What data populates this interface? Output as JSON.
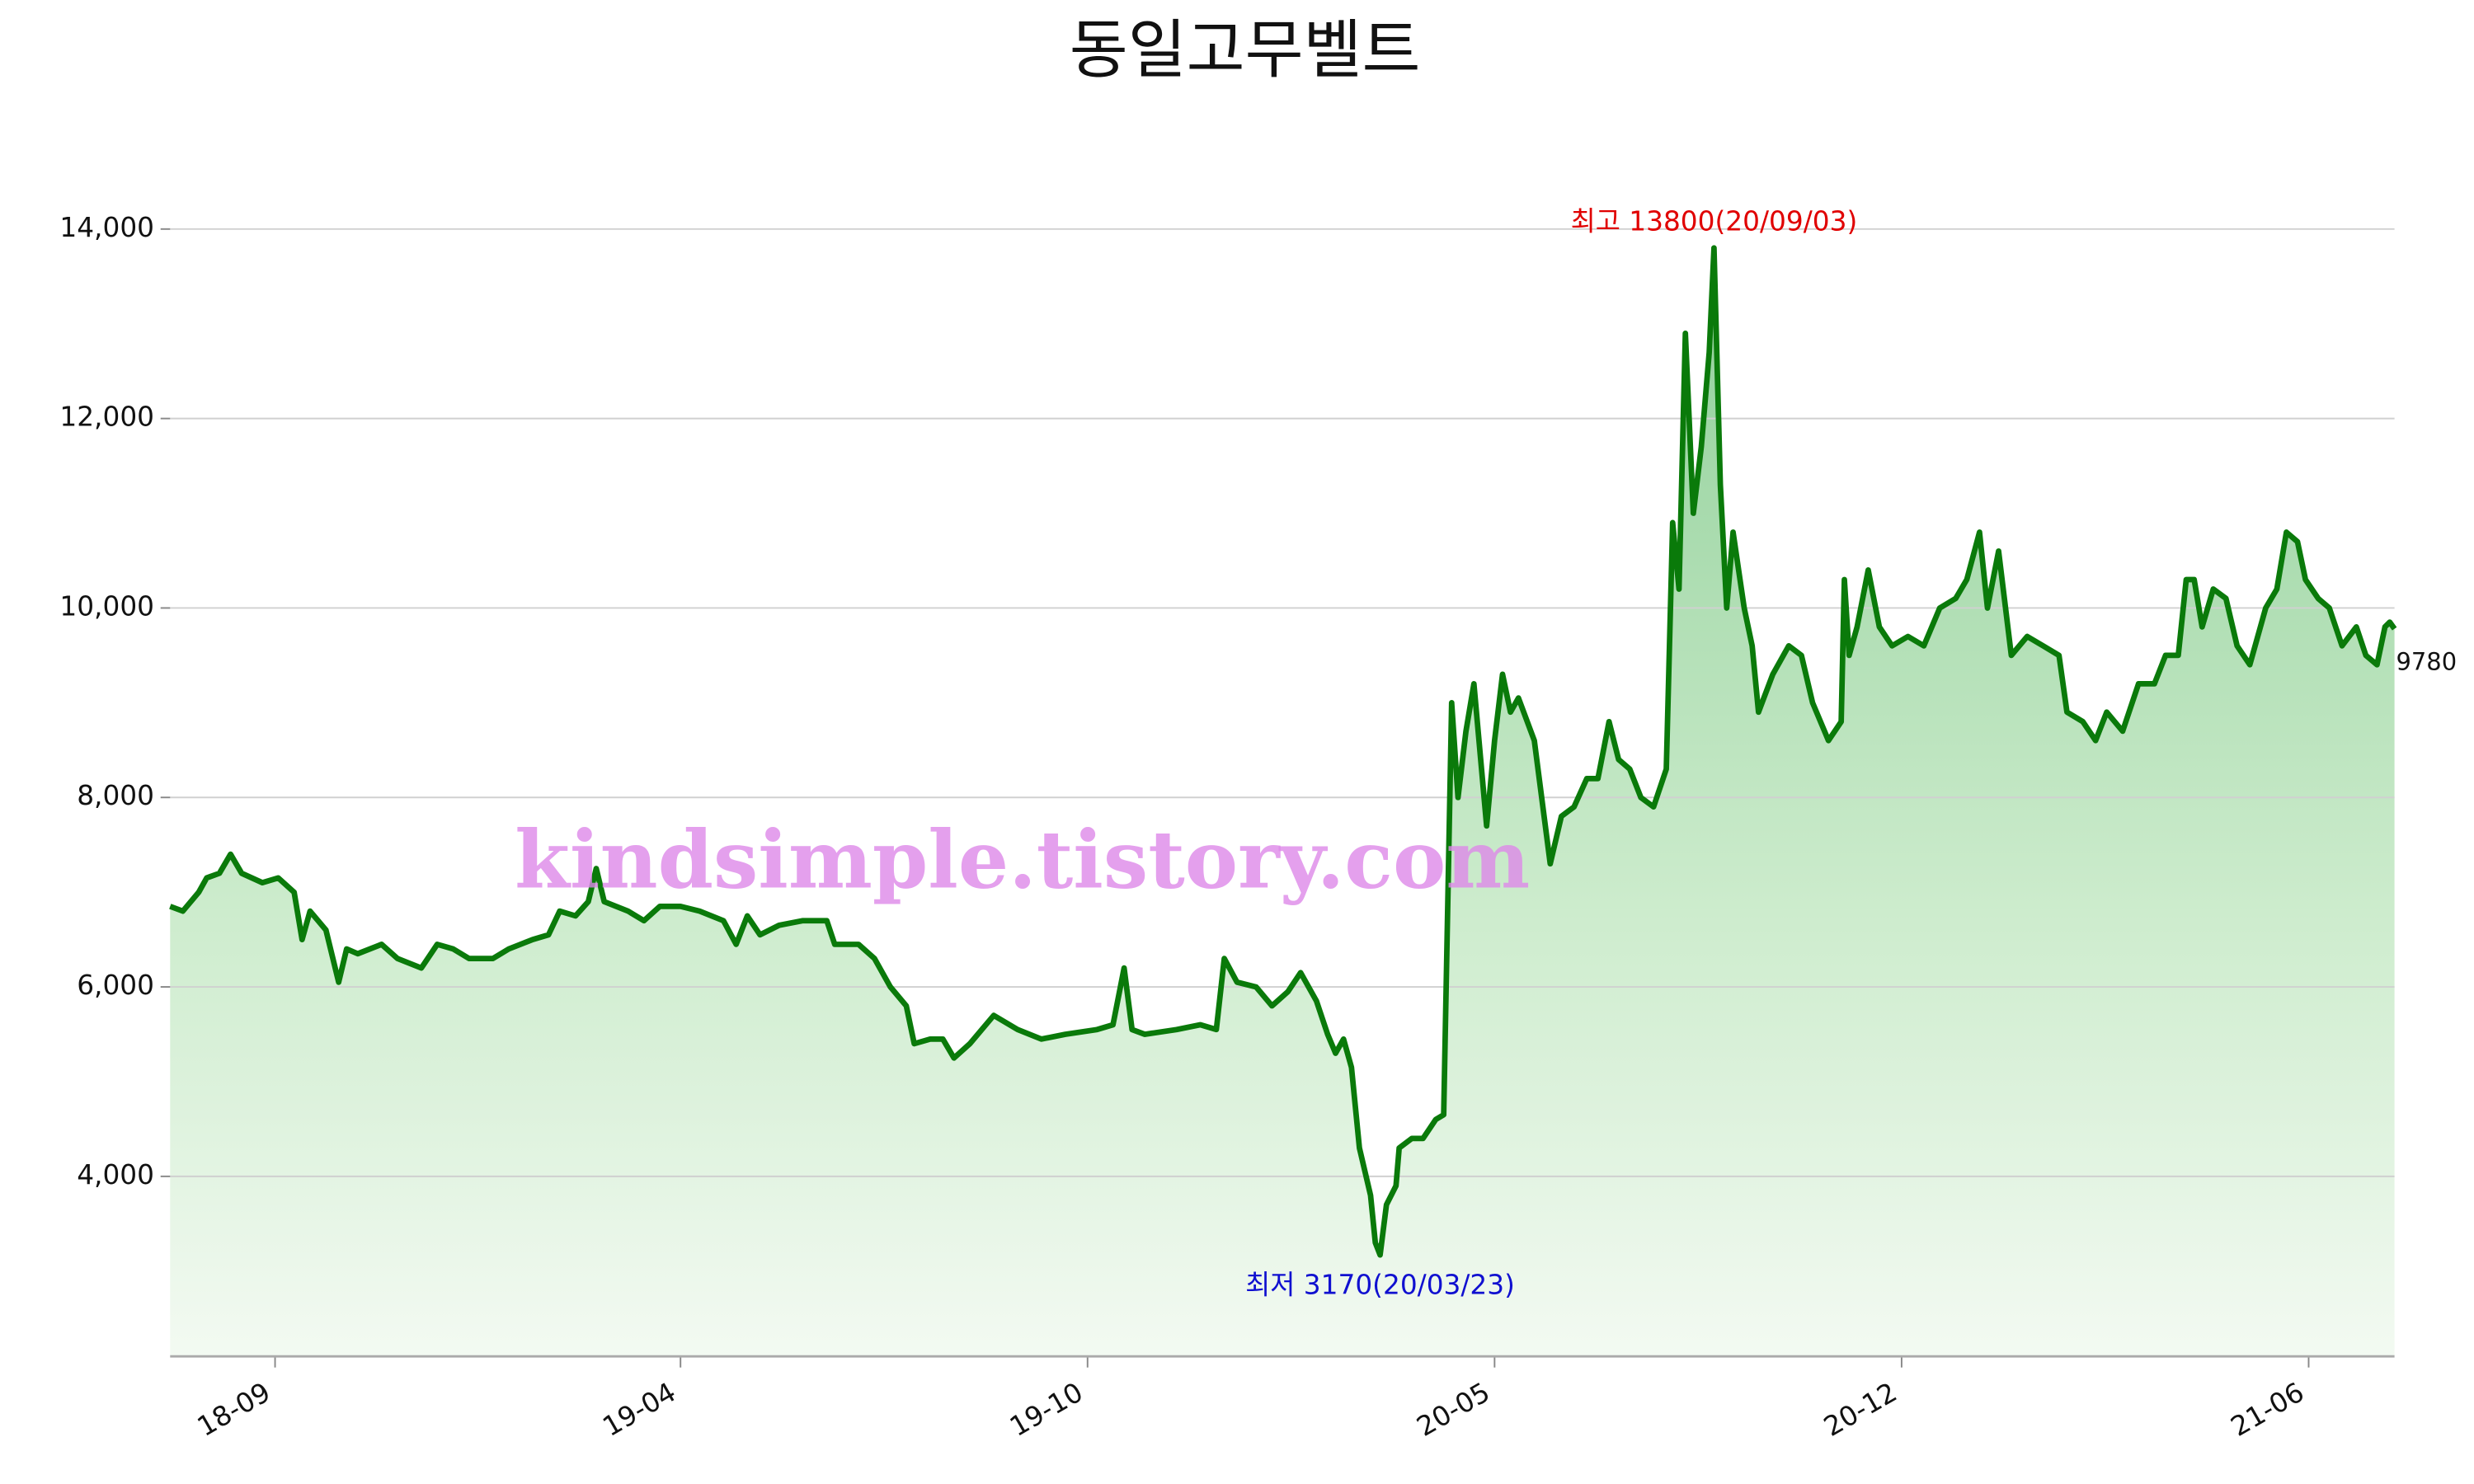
{
  "chart_data": {
    "type": "line",
    "title": "동일고무벨트",
    "watermark": "kindsimple.tistory.com",
    "annotations": {
      "high": "최고 13800(20/09/03)",
      "low": "최저 3170(20/03/23)",
      "last": "9780"
    },
    "x": [
      0,
      8,
      18,
      23,
      31,
      38,
      45,
      58,
      68,
      78,
      83,
      88,
      98,
      106,
      111,
      118,
      133,
      143,
      158,
      168,
      178,
      188,
      203,
      213,
      228,
      238,
      245,
      255,
      263,
      268,
      273,
      288,
      298,
      308,
      321,
      333,
      348,
      356,
      363,
      371,
      383,
      398,
      413,
      418,
      433,
      443,
      453,
      463,
      468,
      478,
      486,
      493,
      503,
      518,
      533,
      548,
      563,
      583,
      593,
      600,
      605,
      613,
      633,
      648,
      658,
      663,
      671,
      683,
      693,
      703,
      711,
      721,
      728,
      733,
      738,
      743,
      748,
      755,
      758,
      761,
      765,
      771,
      773,
      781,
      788,
      796,
      801,
      806,
      810,
      815,
      820,
      828,
      833,
      838,
      843,
      848,
      858,
      868,
      875,
      883,
      891,
      898,
      905,
      911,
      918,
      925,
      933,
      941,
      945,
      949,
      953,
      958,
      963,
      968,
      971,
      975,
      979,
      983,
      990,
      995,
      999,
      1008,
      1018,
      1026,
      1033,
      1043,
      1051,
      1053,
      1056,
      1061,
      1068,
      1075,
      1083,
      1093,
      1103,
      1113,
      1123,
      1130,
      1138,
      1143,
      1150,
      1158,
      1168,
      1178,
      1188,
      1193,
      1203,
      1211,
      1218,
      1228,
      1238,
      1248,
      1255,
      1263,
      1268,
      1273,
      1278,
      1285,
      1293,
      1300,
      1308,
      1318,
      1325,
      1331,
      1338,
      1343,
      1351,
      1358,
      1366,
      1375,
      1381,
      1388,
      1393,
      1396,
      1399
    ],
    "series": [
      {
        "name": "동일고무벨트",
        "color": "#0a7a0a",
        "values": [
          6850,
          6800,
          7000,
          7150,
          7200,
          7400,
          7200,
          7100,
          7150,
          7000,
          6500,
          6800,
          6600,
          6050,
          6400,
          6350,
          6450,
          6300,
          6200,
          6450,
          6400,
          6300,
          6300,
          6400,
          6500,
          6550,
          6800,
          6750,
          6900,
          7250,
          6900,
          6800,
          6700,
          6850,
          6850,
          6800,
          6700,
          6450,
          6750,
          6550,
          6650,
          6700,
          6700,
          6450,
          6450,
          6300,
          6000,
          5800,
          5400,
          5450,
          5450,
          5250,
          5400,
          5700,
          5550,
          5450,
          5500,
          5550,
          5600,
          6200,
          5550,
          5500,
          5550,
          5600,
          5550,
          6300,
          6050,
          6000,
          5800,
          5950,
          6150,
          5850,
          5500,
          5300,
          5450,
          5150,
          4300,
          3800,
          3300,
          3170,
          3700,
          3900,
          4300,
          4400,
          4400,
          4600,
          4650,
          9000,
          8000,
          8700,
          9200,
          7700,
          8600,
          9300,
          8900,
          9050,
          8600,
          7300,
          7800,
          7900,
          8200,
          8200,
          8800,
          8400,
          8300,
          8000,
          7900,
          8300,
          10900,
          10200,
          12900,
          11000,
          11700,
          12700,
          13800,
          11300,
          10000,
          10800,
          10000,
          9600,
          8900,
          9300,
          9600,
          9500,
          9000,
          8600,
          8800,
          10300,
          9500,
          9800,
          10400,
          9800,
          9600,
          9700,
          9600,
          10000,
          10100,
          10300,
          10800,
          10000,
          10600,
          9500,
          9700,
          9600,
          9500,
          8900,
          8800,
          8600,
          8900,
          8700,
          9200,
          9200,
          9500,
          9500,
          10300,
          10300,
          9800,
          10200,
          10100,
          9600,
          9400,
          10000,
          10200,
          10800,
          10700,
          10300,
          10100,
          10000,
          9600,
          9800,
          9500,
          9400,
          9800,
          9850,
          9780
        ]
      }
    ],
    "xlim": [
      0,
      1399
    ],
    "xticks": [
      {
        "value": 66,
        "label": "18-09"
      },
      {
        "value": 321,
        "label": "19-04"
      },
      {
        "value": 577,
        "label": "19-10"
      },
      {
        "value": 833,
        "label": "20-05"
      },
      {
        "value": 1089,
        "label": "20-12"
      },
      {
        "value": 1345,
        "label": "21-06"
      }
    ],
    "ylim": [
      2100,
      14500
    ],
    "yticks": [
      {
        "value": 4000,
        "label": "4,000"
      },
      {
        "value": 6000,
        "label": "6,000"
      },
      {
        "value": 8000,
        "label": "8,000"
      },
      {
        "value": 10000,
        "label": "10,000"
      },
      {
        "value": 12000,
        "label": "12,000"
      },
      {
        "value": 14000,
        "label": "14,000"
      }
    ],
    "grid": true
  }
}
